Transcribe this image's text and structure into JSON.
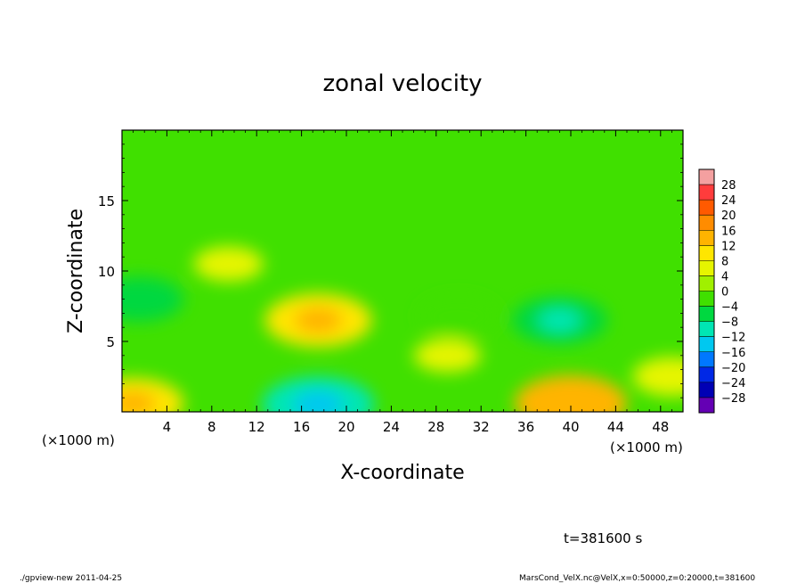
{
  "chart_data": {
    "type": "heatmap",
    "title": "zonal velocity",
    "xlabel": "X-coordinate",
    "ylabel": "Z-coordinate",
    "x_unit": "(×1000 m)",
    "x_unit_right": "(×1000 m)",
    "xlim": [
      0,
      50
    ],
    "ylim": [
      0,
      20
    ],
    "x_ticks": [
      4,
      8,
      12,
      16,
      20,
      24,
      28,
      32,
      36,
      40,
      44,
      48
    ],
    "y_ticks": [
      5,
      10,
      15
    ],
    "colorbar": {
      "labels": [
        "28",
        "24",
        "20",
        "16",
        "12",
        "8",
        "4",
        "0",
        "−4",
        "−8",
        "−12",
        "−16",
        "−20",
        "−24",
        "−28"
      ],
      "colors": [
        "#f4a0a0",
        "#ff3c3c",
        "#ff5a00",
        "#ff8c00",
        "#ffb400",
        "#ffe600",
        "#e6f500",
        "#a0f000",
        "#40e000",
        "#00d840",
        "#00e6b4",
        "#00c8f0",
        "#0078ff",
        "#0028e6",
        "#0000b4",
        "#6400b4"
      ]
    },
    "features": [
      {
        "x": 17.5,
        "z": 6.5,
        "value": 10
      },
      {
        "x": 40,
        "z": 0.6,
        "value": 11
      },
      {
        "x": 1,
        "z": 0.6,
        "value": 9
      },
      {
        "x": 17.5,
        "z": 0.5,
        "value": -11
      },
      {
        "x": 1.5,
        "z": 8,
        "value": -7
      },
      {
        "x": 39,
        "z": 6.5,
        "value": -8
      },
      {
        "x": 30,
        "z": 6.8,
        "value": -5
      },
      {
        "x": 9.5,
        "z": 10.5,
        "value": 3.5
      },
      {
        "x": 29,
        "z": 4,
        "value": 3
      },
      {
        "x": 49,
        "z": 2.5,
        "value": 5
      }
    ]
  },
  "time_label": "t=381600 s",
  "footer": {
    "left": "./gpview-new  2011-04-25",
    "right": "MarsCond_VelX.nc@VelX,x=0:50000,z=0:20000,t=381600"
  }
}
